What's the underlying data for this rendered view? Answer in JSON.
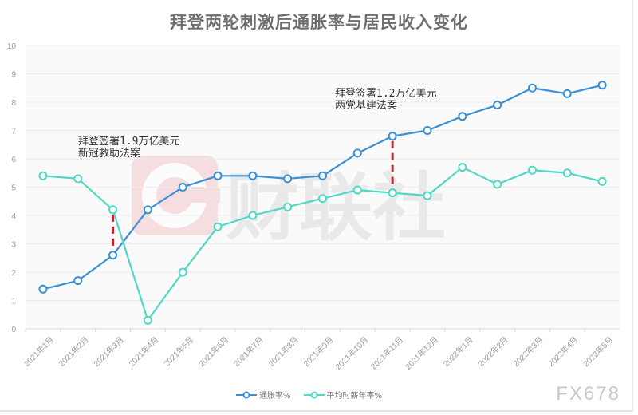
{
  "title": "拜登两轮刺激后通胀率与居民收入变化",
  "brand_watermark": "FX678",
  "logo_watermark": "财联社",
  "colors": {
    "inflation": "#3a8fd6",
    "wage": "#4fd8c4",
    "marker_line": "#c0262d",
    "grid": "#ececec",
    "logo": "#f4c6cb"
  },
  "annotations": [
    {
      "line1": "拜登签署1.9万亿美元",
      "line2": "新冠救助法案",
      "month_index": 2
    },
    {
      "line1": "拜登签署1.2万亿美元",
      "line2": "两党基建法案",
      "month_index": 10
    }
  ],
  "legend": [
    {
      "label": "通胀率%",
      "color": "#3a8fd6"
    },
    {
      "label": "平均时薪年率%",
      "color": "#4fd8c4"
    }
  ],
  "chart_data": {
    "type": "line",
    "title": "拜登两轮刺激后通胀率与居民收入变化",
    "xlabel": "",
    "ylabel": "",
    "ylim": [
      0,
      10
    ],
    "yticks": [
      0,
      1,
      2,
      3,
      4,
      5,
      6,
      7,
      8,
      9,
      10
    ],
    "grid": true,
    "legend_position": "bottom",
    "categories": [
      "2021年1月",
      "2021年2月",
      "2021年3月",
      "2021年4月",
      "2021年5月",
      "2021年6月",
      "2021年7月",
      "2021年8月",
      "2021年9月",
      "2021年10月",
      "2021年11月",
      "2021年12月",
      "2022年1月",
      "2022年2月",
      "2022年3月",
      "2022年4月",
      "2022年5月"
    ],
    "series": [
      {
        "name": "通胀率%",
        "values": [
          1.4,
          1.7,
          2.6,
          4.2,
          5.0,
          5.4,
          5.4,
          5.3,
          5.4,
          6.2,
          6.8,
          7.0,
          7.5,
          7.9,
          8.5,
          8.3,
          8.6
        ]
      },
      {
        "name": "平均时薪年率%",
        "values": [
          5.4,
          5.3,
          4.2,
          0.3,
          2.0,
          3.6,
          4.0,
          4.3,
          4.6,
          4.9,
          4.8,
          4.7,
          5.7,
          5.1,
          5.6,
          5.5,
          5.2
        ]
      }
    ],
    "annotations": [
      {
        "text": "拜登签署1.9万亿美元新冠救助法案",
        "x": "2021年3月"
      },
      {
        "text": "拜登签署1.2万亿美元两党基建法案",
        "x": "2021年11月"
      }
    ]
  }
}
